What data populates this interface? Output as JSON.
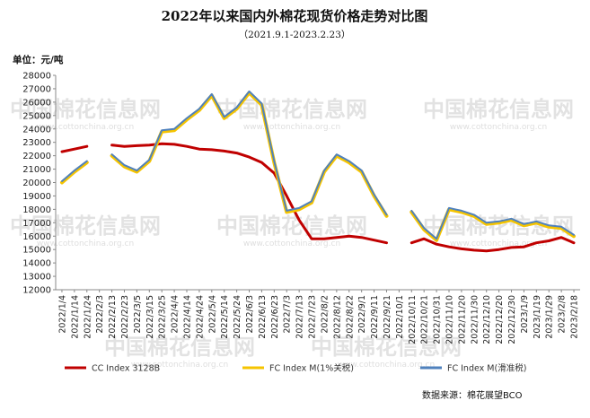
{
  "chart_data": {
    "type": "line",
    "title": "2022年以来国内外棉花现货价格走势对比图",
    "subtitle": "（2021.9.1-2023.2.23）",
    "ylabel": "单位：元/吨",
    "ylim": [
      12000,
      28000
    ],
    "yticks": [
      12000,
      13000,
      14000,
      15000,
      16000,
      17000,
      18000,
      19000,
      20000,
      21000,
      22000,
      23000,
      24000,
      25000,
      26000,
      27000,
      28000
    ],
    "categories": [
      "2022/1/4",
      "2022/1/14",
      "2022/1/24",
      "2022/2/3",
      "2022/2/13",
      "2022/2/23",
      "2022/3/5",
      "2022/3/15",
      "2022/3/25",
      "2022/4/4",
      "2022/4/14",
      "2022/4/24",
      "2022/5/4",
      "2022/5/14",
      "2022/5/24",
      "2022/6/3",
      "2022/6/13",
      "2022/6/23",
      "2022/7/3",
      "2022/7/13",
      "2022/7/23",
      "2022/8/2",
      "2022/8/12",
      "2022/8/22",
      "2022/9/1",
      "2022/9/11",
      "2022/9/21",
      "2022/10/1",
      "2022/10/11",
      "2022/10/21",
      "2022/10/31",
      "2022/11/10",
      "2022/11/20",
      "2022/11/30",
      "2022/12/10",
      "2022/12/20",
      "2022/12/30",
      "2023/1/9",
      "2023/1/19",
      "2023/1/29",
      "2023/2/8",
      "2023/2/18"
    ],
    "grid": false,
    "legend_position": "bottom",
    "series": [
      {
        "name": "CC Index 3128B",
        "color": "#c00000",
        "values": [
          22300,
          22500,
          22700,
          null,
          22800,
          22700,
          22750,
          22800,
          22900,
          22850,
          22700,
          22500,
          22450,
          22350,
          22200,
          21900,
          21500,
          20700,
          19000,
          17200,
          15800,
          15800,
          15900,
          16000,
          15900,
          15700,
          15500,
          null,
          15500,
          15800,
          15400,
          15200,
          15050,
          14950,
          14900,
          15000,
          15150,
          15200,
          15500,
          15650,
          15900,
          15500
        ]
      },
      {
        "name": "FC Index M(1%关税)",
        "color": "#f5c400",
        "values": [
          20000,
          20800,
          21500,
          null,
          22000,
          21200,
          20800,
          21600,
          23800,
          23900,
          24700,
          25400,
          26500,
          24800,
          25500,
          26700,
          25800,
          21500,
          17800,
          18000,
          18500,
          20800,
          22000,
          21500,
          20800,
          19000,
          17500,
          null,
          17800,
          16500,
          15700,
          18000,
          17800,
          17500,
          16900,
          17000,
          17200,
          16800,
          17000,
          16700,
          16600,
          16000
        ]
      },
      {
        "name": "FC Index M(滑准税)",
        "color": "#4f81bd",
        "values": [
          20100,
          20900,
          21600,
          null,
          22100,
          21300,
          20900,
          21700,
          23900,
          24000,
          24800,
          25500,
          26600,
          24900,
          25600,
          26800,
          25900,
          21600,
          17900,
          18100,
          18600,
          20900,
          22100,
          21600,
          20900,
          19100,
          17600,
          null,
          17900,
          16600,
          15800,
          18100,
          17900,
          17600,
          17000,
          17100,
          17300,
          16900,
          17100,
          16800,
          16700,
          16100
        ]
      }
    ]
  },
  "watermark": {
    "text": "中国棉花信息网",
    "url": "www.cottonchina.org.cn"
  },
  "source": "数据来源：棉花展望BCO"
}
